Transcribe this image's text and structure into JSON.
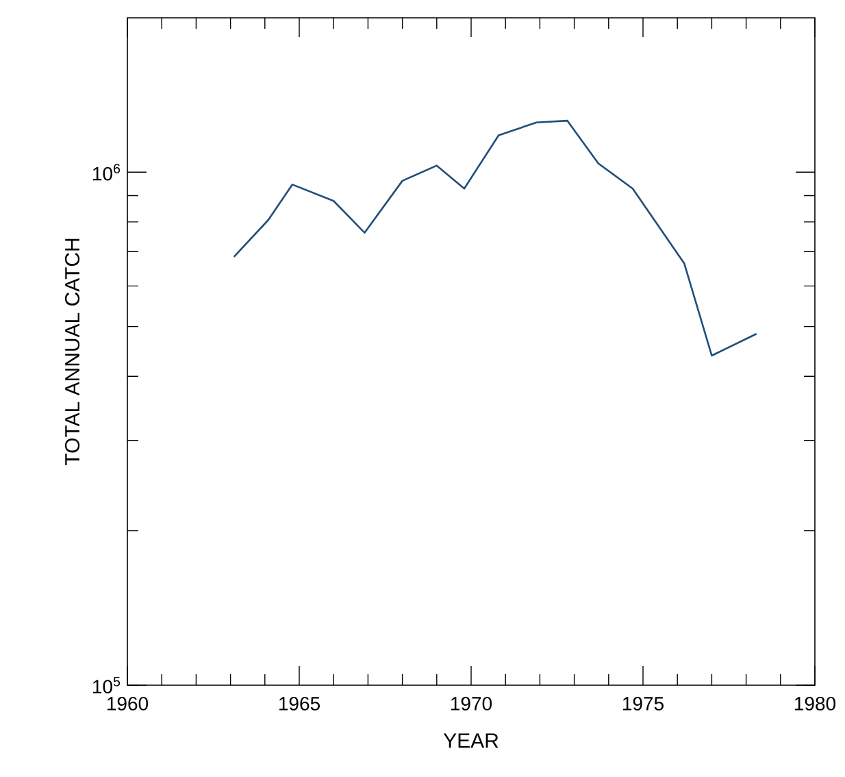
{
  "chart_data": {
    "type": "line",
    "xlabel": "YEAR",
    "ylabel": "TOTAL ANNUAL CATCH",
    "x": [
      1963.1,
      1964.1,
      1964.8,
      1966.0,
      1966.9,
      1968.0,
      1969.0,
      1969.8,
      1970.8,
      1971.9,
      1972.8,
      1973.7,
      1974.7,
      1976.2,
      1977.0,
      1978.3
    ],
    "series": [
      {
        "color": "#1f4e79",
        "values": [
          684000,
          807000,
          946000,
          879000,
          762000,
          962000,
          1030000,
          929000,
          1180000,
          1250000,
          1260000,
          1040000,
          929000,
          664000,
          439000,
          484000
        ]
      }
    ],
    "log": "y",
    "xlim": [
      1960,
      1980
    ],
    "ylim": [
      100000,
      2000000
    ],
    "xticks": [
      1960,
      1965,
      1970,
      1975,
      1980
    ],
    "yticks": [
      {
        "value": 100000,
        "label": "10$^{5}$"
      },
      {
        "value": 1000000,
        "label": "10$^{6}$"
      }
    ],
    "marker": "none",
    "line_style": "solid"
  }
}
